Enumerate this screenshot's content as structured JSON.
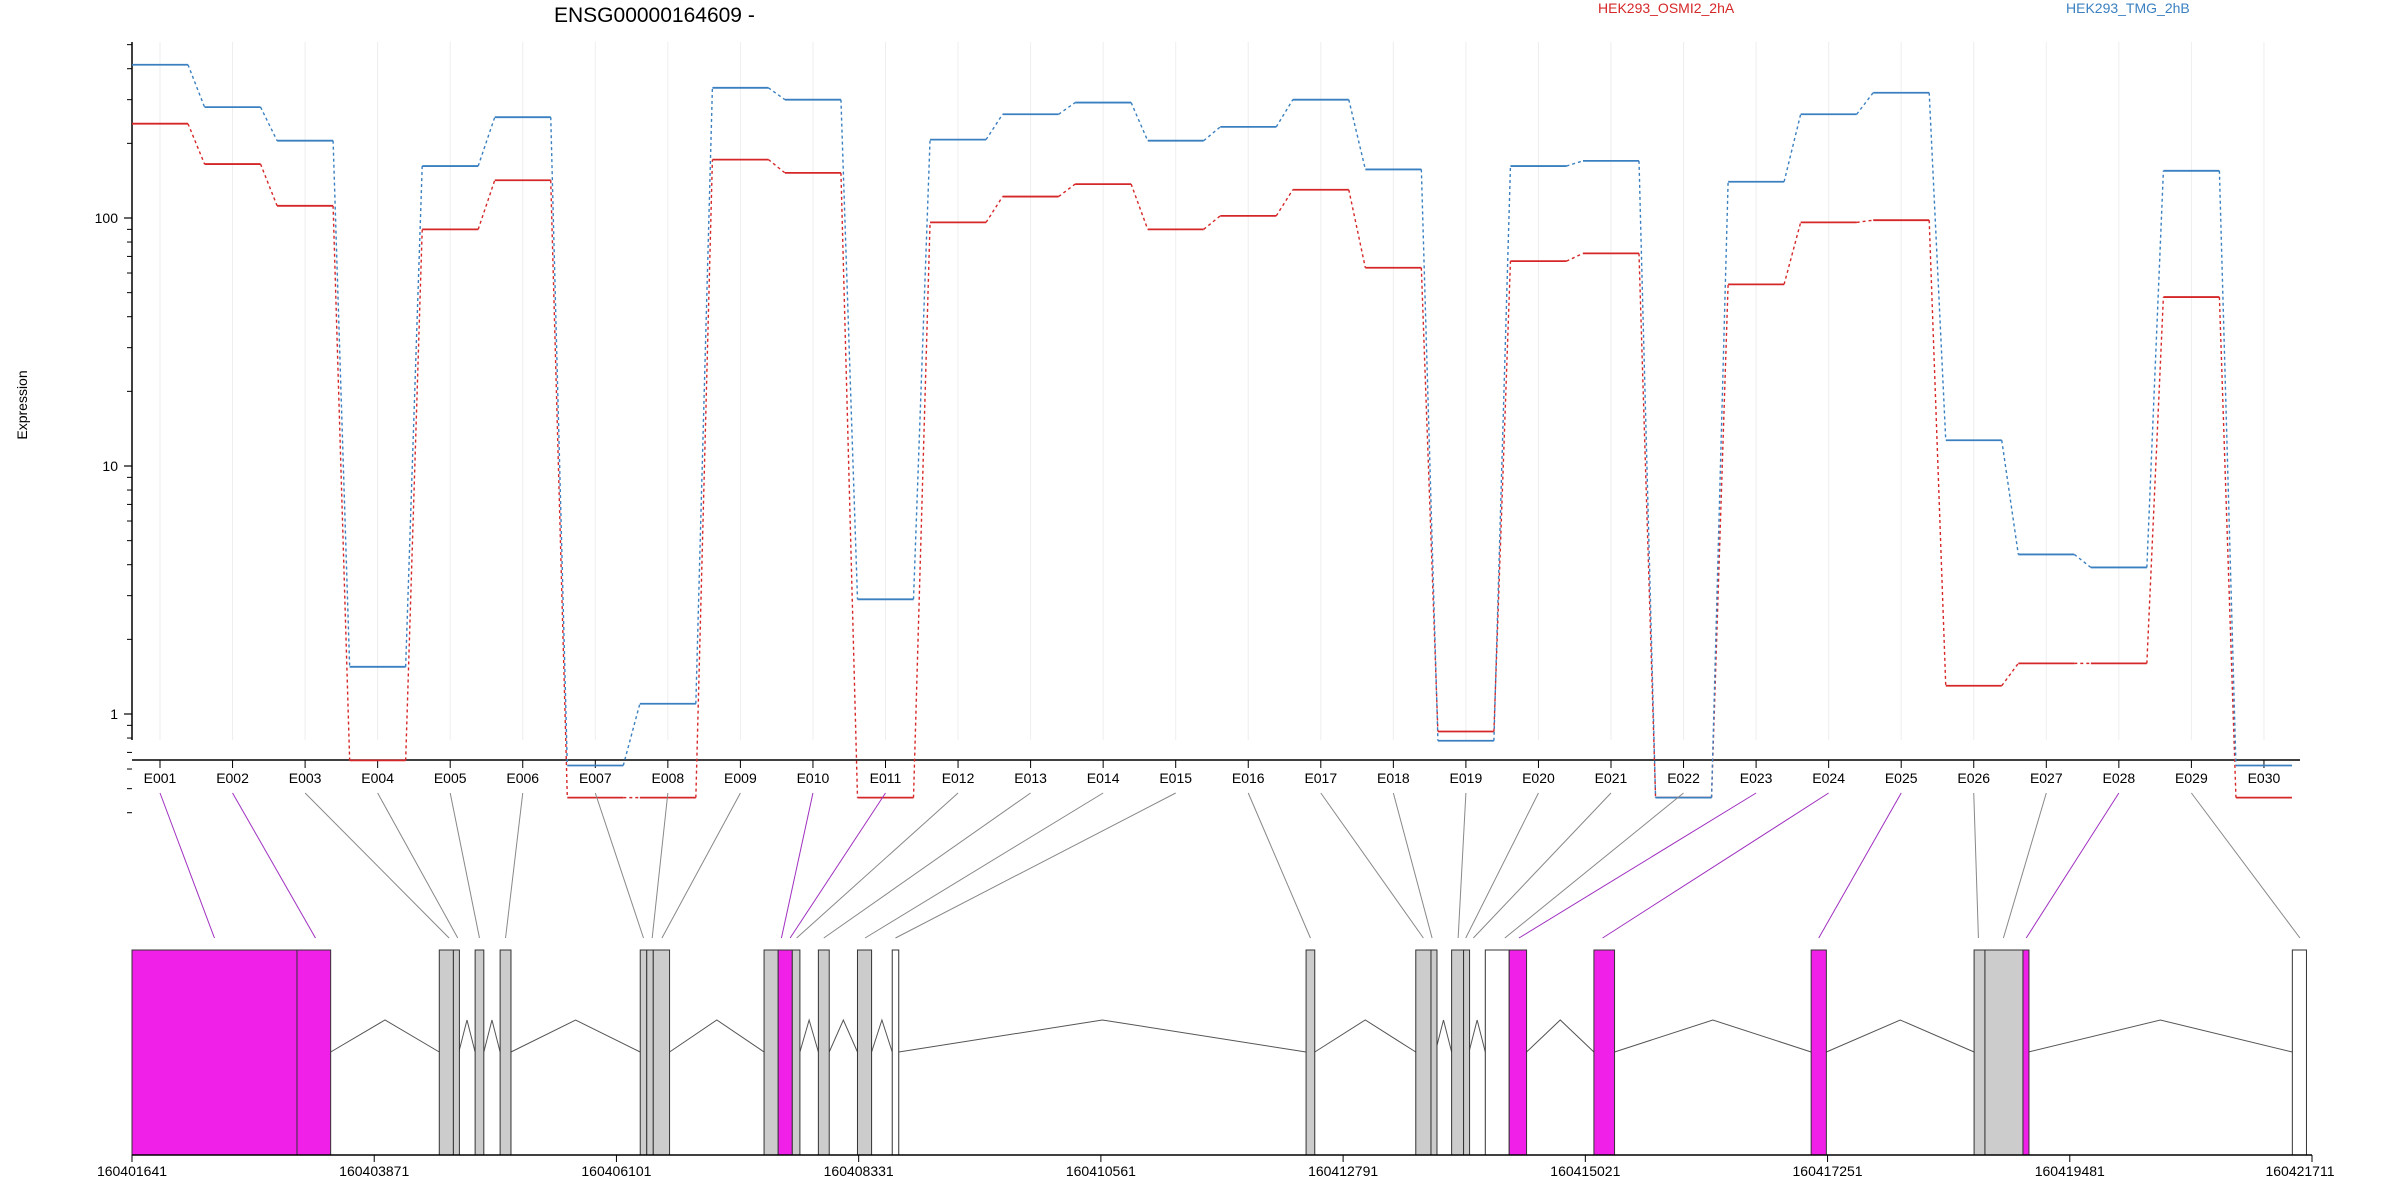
{
  "chart_data": {
    "type": "line",
    "title": "ENSG00000164609 -",
    "ylabel": "Expression",
    "xlabel": "",
    "y_scale": "log",
    "ylim": [
      0.4,
      580
    ],
    "y_ticks": [
      1,
      10,
      100
    ],
    "y_tick_labels": [
      "1",
      "10",
      "100"
    ],
    "grid": "vertical, light",
    "legend_placement": "top",
    "categories": [
      "E001",
      "E002",
      "E003",
      "E004",
      "E005",
      "E006",
      "E007",
      "E008",
      "E009",
      "E010",
      "E011",
      "E012",
      "E013",
      "E014",
      "E015",
      "E016",
      "E017",
      "E018",
      "E019",
      "E020",
      "E021",
      "E022",
      "E023",
      "E024",
      "E025",
      "E026",
      "E027",
      "E028",
      "E029",
      "E030"
    ],
    "series": [
      {
        "name": "HEK293_OSMI2_2hA",
        "color": "#d62728",
        "values": [
          240,
          165,
          112,
          0.65,
          90,
          142,
          0.46,
          0.46,
          172,
          152,
          0.46,
          96,
          122,
          137,
          90,
          102,
          130,
          63,
          0.85,
          67,
          72,
          0.46,
          54,
          96,
          98,
          1.3,
          1.6,
          1.6,
          48,
          0.46
        ]
      },
      {
        "name": "HEK293_TMG_2hB",
        "color": "#3a80c1",
        "values": [
          415,
          280,
          205,
          1.55,
          162,
          255,
          0.62,
          1.1,
          335,
          300,
          2.9,
          207,
          262,
          292,
          205,
          233,
          300,
          157,
          0.78,
          162,
          170,
          0.46,
          140,
          262,
          320,
          12.7,
          4.4,
          3.9,
          155,
          0.62
        ]
      }
    ],
    "gene_model": {
      "coordinate_ticks": [
        "160401641",
        "160403871",
        "160406101",
        "160408331",
        "160410561",
        "160412791",
        "160415021",
        "160417251",
        "160419481",
        "160421711"
      ],
      "x_range": [
        160401641,
        160421711
      ],
      "exons": [
        {
          "start": 160401641,
          "end": 160403160,
          "fill": "#f020e8",
          "bin": 1
        },
        {
          "start": 160403160,
          "end": 160403470,
          "fill": "#f020e8",
          "bin": 2
        },
        {
          "start": 160404470,
          "end": 160404600,
          "fill": "#cccccc",
          "bin": 3
        },
        {
          "start": 160404600,
          "end": 160404650,
          "fill": "#cccccc",
          "bin": 4
        },
        {
          "start": 160404800,
          "end": 160404880,
          "fill": "#cccccc",
          "bin": 5
        },
        {
          "start": 160405030,
          "end": 160405130,
          "fill": "#cccccc",
          "bin": 6
        },
        {
          "start": 160406320,
          "end": 160406380,
          "fill": "#cccccc",
          "bin": 7
        },
        {
          "start": 160406380,
          "end": 160406440,
          "fill": "#cccccc",
          "bin": 8
        },
        {
          "start": 160406440,
          "end": 160406590,
          "fill": "#cccccc",
          "bin": 9
        },
        {
          "start": 160407460,
          "end": 160407590,
          "fill": "#cccccc",
          "bin": 10
        },
        {
          "start": 160407590,
          "end": 160407720,
          "fill": "#f020e8",
          "bin": 11
        },
        {
          "start": 160407720,
          "end": 160407790,
          "fill": "#cccccc",
          "bin": 12
        },
        {
          "start": 160407960,
          "end": 160408060,
          "fill": "#cccccc",
          "bin": 13
        },
        {
          "start": 160408320,
          "end": 160408450,
          "fill": "#cccccc",
          "bin": 14
        },
        {
          "start": 160408640,
          "end": 160408700,
          "fill": "#ffffff",
          "bin": 15
        },
        {
          "start": 160412450,
          "end": 160412530,
          "fill": "#cccccc",
          "bin": 16
        },
        {
          "start": 160413460,
          "end": 160413600,
          "fill": "#cccccc",
          "bin": 17
        },
        {
          "start": 160413600,
          "end": 160413640,
          "fill": "#cccccc",
          "bin": 18
        },
        {
          "start": 160413790,
          "end": 160413900,
          "fill": "#cccccc",
          "bin": 19
        },
        {
          "start": 160413900,
          "end": 160413950,
          "fill": "#cccccc",
          "bin": 20
        },
        {
          "start": 160414100,
          "end": 160414320,
          "fill": "#ffffff",
          "bin": 21
        },
        {
          "start": 160414320,
          "end": 160414480,
          "fill": "#f020e8",
          "bin": 22
        },
        {
          "start": 160415100,
          "end": 160415290,
          "fill": "#f020e8",
          "bin": 23
        },
        {
          "start": 160417100,
          "end": 160417240,
          "fill": "#f020e8",
          "bin": 24
        },
        {
          "start": 160418600,
          "end": 160418700,
          "fill": "#cccccc",
          "bin": 25
        },
        {
          "start": 160418700,
          "end": 160419050,
          "fill": "#cccccc",
          "bin": 26
        },
        {
          "start": 160419050,
          "end": 160419100,
          "fill": "#f020e8",
          "bin": 27
        },
        {
          "start": 160421530,
          "end": 160421660,
          "fill": "#ffffff",
          "bin": 30
        }
      ],
      "connector_targets": [
        160402400,
        160403330,
        160404560,
        160404640,
        160404840,
        160405080,
        160406350,
        160406430,
        160406520,
        160407620,
        160407700,
        160407760,
        160408010,
        160408390,
        160408670,
        160412490,
        160413530,
        160413610,
        160413850,
        160413920,
        160413990,
        160414280,
        160414410,
        160415180,
        160417170,
        160418640,
        160418870,
        160419080,
        160421600
      ]
    }
  }
}
